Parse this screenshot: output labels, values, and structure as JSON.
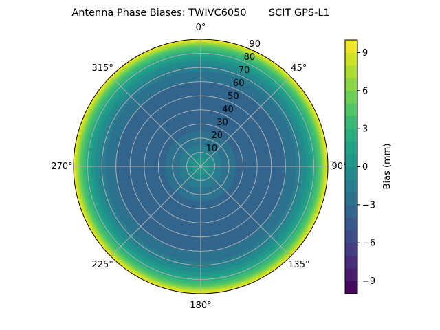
{
  "chart_data": {
    "type": "polar-contour",
    "title": "Antenna Phase Biases: TWIVC6050       SCIT GPS-L1",
    "colormap": "viridis",
    "theta_direction": "clockwise",
    "theta_zero": "north",
    "theta_tick_labels": [
      "0°",
      "45°",
      "90°",
      "135°",
      "180°",
      "225°",
      "270°",
      "315°"
    ],
    "theta_ticks": [
      0,
      45,
      90,
      135,
      180,
      225,
      270,
      315
    ],
    "radial_ticks": [
      10,
      20,
      30,
      40,
      50,
      60,
      70,
      80,
      90
    ],
    "radial_tick_labels": [
      "10",
      "20",
      "30",
      "40",
      "50",
      "60",
      "70",
      "80",
      "90"
    ],
    "rlim": [
      0,
      90
    ],
    "grid": true,
    "profile": {
      "zenith_deg": [
        0,
        5,
        10,
        15,
        20,
        25,
        30,
        35,
        40,
        45,
        50,
        55,
        60,
        65,
        70,
        75,
        80,
        85,
        90
      ],
      "bias_mm": [
        0.5,
        0.2,
        -1,
        -2,
        -2.5,
        -3,
        -3.5,
        -4,
        -4,
        -4,
        -4,
        -3.5,
        -3,
        -2.5,
        -1.5,
        0,
        2,
        5,
        10
      ]
    },
    "colorbar": {
      "label": "Bias (mm)",
      "levels_min": -10,
      "levels_max": 10,
      "level_step": 1,
      "ticks": [
        -9,
        -6,
        -3,
        0,
        3,
        6,
        9
      ],
      "tick_labels": [
        "−9",
        "−6",
        "−3",
        "0",
        "3",
        "6",
        "9"
      ]
    }
  }
}
